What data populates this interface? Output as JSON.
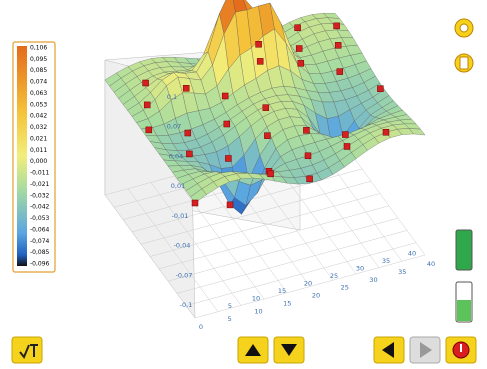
{
  "colorbar": {
    "labels": [
      "0,106",
      "0,095",
      "0,085",
      "0,074",
      "0,063",
      "0,053",
      "0,042",
      "0,032",
      "0,021",
      "0,011",
      "0,000",
      "-0,011",
      "-0,021",
      "-0,032",
      "-0,042",
      "-0,053",
      "-0,064",
      "-0,074",
      "-0,085",
      "-0,096"
    ]
  },
  "axes": {
    "z_labels": [
      "0,1",
      "0,07",
      "0,04",
      "0,01",
      "-0,01",
      "-0,04",
      "-0,07",
      "-0,1"
    ],
    "x_labels": [
      "0",
      "5",
      "10",
      "15",
      "20",
      "25",
      "30",
      "35",
      "40"
    ],
    "y_labels": [
      "5",
      "10",
      "15",
      "20",
      "25",
      "30",
      "35",
      "40"
    ]
  }
}
